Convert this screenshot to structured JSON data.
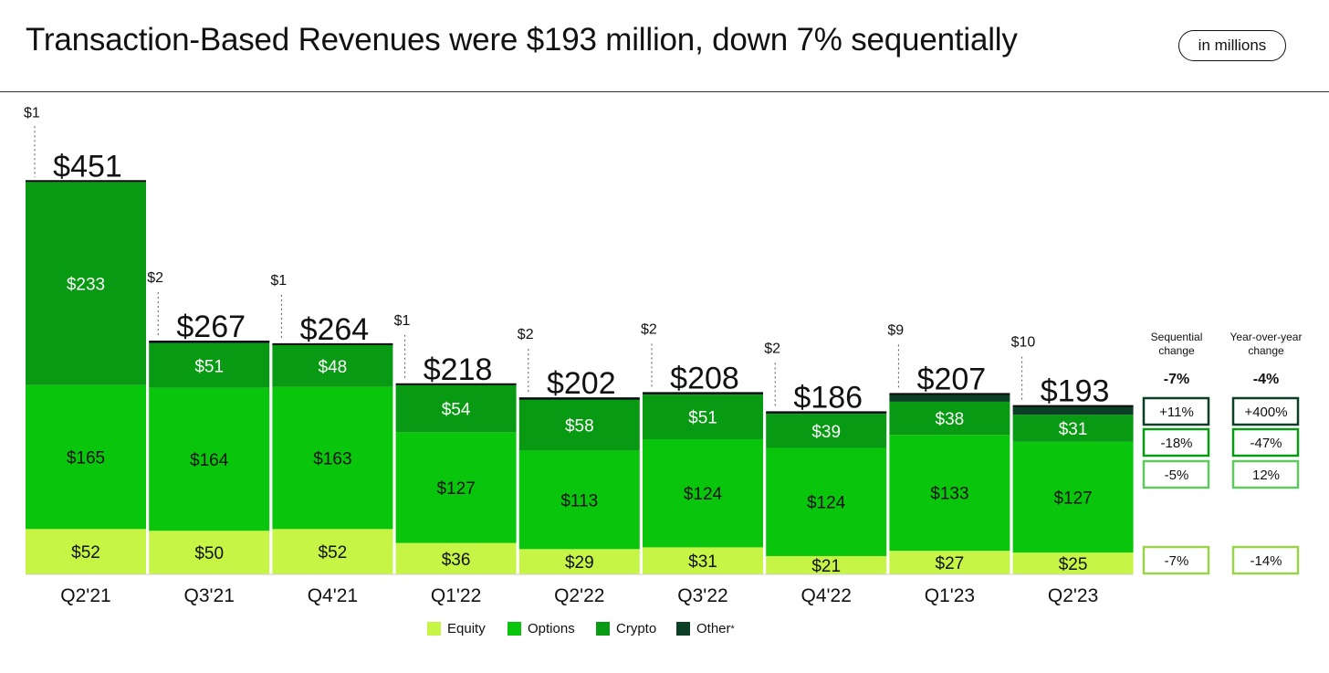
{
  "header": {
    "title": "Transaction-Based Revenues were $193 million, down 7% sequentially",
    "unit_badge": "in millions"
  },
  "colors": {
    "equity": "#c6f545",
    "options": "#09c50c",
    "crypto": "#079a12",
    "other": "#0b4026",
    "change_crypto": "#0b4026",
    "change_options": "#079a12",
    "change_equity": "#5fc95f",
    "change_equity2": "#9ad24b"
  },
  "legend": [
    {
      "name": "Equity",
      "key": "equity",
      "star": ""
    },
    {
      "name": "Options",
      "key": "options",
      "star": ""
    },
    {
      "name": "Crypto",
      "key": "crypto",
      "star": ""
    },
    {
      "name": "Other",
      "key": "other",
      "star": "*"
    }
  ],
  "chart_data": {
    "type": "bar",
    "stacked": true,
    "unit": "in millions",
    "categories": [
      "Q2'21",
      "Q3'21",
      "Q4'21",
      "Q1'22",
      "Q2'22",
      "Q3'22",
      "Q4'22",
      "Q1'23",
      "Q2'23"
    ],
    "series": [
      {
        "name": "Equity",
        "key": "equity",
        "values": [
          52,
          50,
          52,
          36,
          29,
          31,
          21,
          27,
          25
        ],
        "labels": [
          "$52",
          "$50",
          "$52",
          "$36",
          "$29",
          "$31",
          "$21",
          "$27",
          "$25"
        ]
      },
      {
        "name": "Options",
        "key": "options",
        "values": [
          165,
          164,
          163,
          127,
          113,
          124,
          124,
          133,
          127
        ],
        "labels": [
          "$165",
          "$164",
          "$163",
          "$127",
          "$113",
          "$124",
          "$124",
          "$133",
          "$127"
        ]
      },
      {
        "name": "Crypto",
        "key": "crypto",
        "values": [
          233,
          51,
          48,
          54,
          58,
          51,
          39,
          38,
          31
        ],
        "labels": [
          "$233",
          "$51",
          "$48",
          "$54",
          "$58",
          "$51",
          "$39",
          "$38",
          "$31"
        ]
      },
      {
        "name": "Other",
        "key": "other",
        "values": [
          1,
          2,
          1,
          1,
          2,
          2,
          2,
          9,
          10
        ],
        "labels": [
          "$1",
          "$2",
          "$1",
          "$1",
          "$2",
          "$2",
          "$2",
          "$9",
          "$10"
        ]
      }
    ],
    "totals": [
      451,
      267,
      264,
      218,
      202,
      208,
      186,
      207,
      193
    ],
    "total_labels": [
      "$451",
      "$267",
      "$264",
      "$218",
      "$202",
      "$208",
      "$186",
      "$207",
      "$193"
    ],
    "ylim": [
      0,
      460
    ],
    "grid": false
  },
  "changes": {
    "sequential_header": [
      "Sequential",
      "change"
    ],
    "yoy_header": [
      "Year-over-year",
      "change"
    ],
    "total_sequential": "-7%",
    "total_yoy": "-4%",
    "rows": [
      {
        "segment": "crypto",
        "color_key": "change_crypto",
        "sequential": "+11%",
        "yoy": "+400%"
      },
      {
        "segment": "options",
        "color_key": "change_options",
        "sequential": "-18%",
        "yoy": "-47%"
      },
      {
        "segment": "options2",
        "color_key": "change_equity",
        "sequential": "-5%",
        "yoy": "12%"
      },
      {
        "segment": "equity",
        "color_key": "change_equity2",
        "sequential": "-7%",
        "yoy": "-14%"
      }
    ]
  }
}
